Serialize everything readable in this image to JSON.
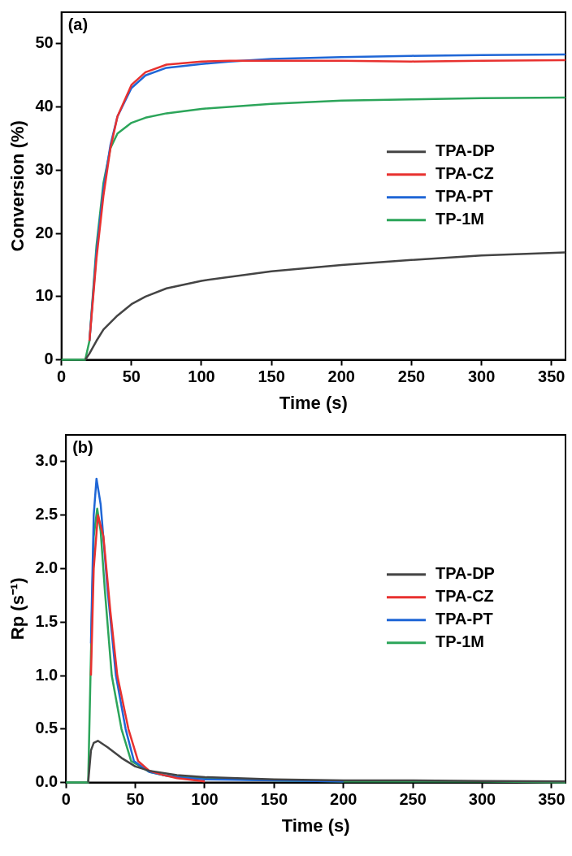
{
  "chart_data": [
    {
      "type": "line",
      "xlabel": "Time (s)",
      "ylabel": "Conversion (%)",
      "annotations": [
        "(a)"
      ],
      "xlim": [
        0,
        360
      ],
      "xticks": [
        0,
        50,
        100,
        150,
        200,
        250,
        300,
        350
      ],
      "ylim": [
        0,
        55
      ],
      "yticks": [
        0,
        10,
        20,
        30,
        40,
        50
      ],
      "grid": false,
      "legend": "right",
      "marker": "none",
      "line_style": "solid",
      "series": [
        {
          "name": "TPA-DP",
          "color": "#444444",
          "x": [
            17,
            20,
            25,
            30,
            40,
            50,
            60,
            75,
            100,
            150,
            200,
            250,
            300,
            360
          ],
          "values": [
            0,
            1,
            3,
            4.8,
            7,
            8.8,
            10,
            11.3,
            12.5,
            14,
            15,
            15.8,
            16.5,
            17
          ]
        },
        {
          "name": "TPA-CZ",
          "color": "#e8312f",
          "x": [
            20,
            25,
            30,
            35,
            40,
            50,
            60,
            75,
            100,
            120,
            150,
            200,
            250,
            300,
            360
          ],
          "values": [
            3,
            16,
            26,
            33.5,
            38.5,
            43.5,
            45.5,
            46.7,
            47.2,
            47.3,
            47.3,
            47.3,
            47.2,
            47.3,
            47.4
          ]
        },
        {
          "name": "TPA-PT",
          "color": "#1f66d6",
          "x": [
            20,
            25,
            30,
            35,
            40,
            50,
            60,
            75,
            100,
            120,
            150,
            200,
            250,
            300,
            360
          ],
          "values": [
            3,
            17,
            27,
            34,
            38.5,
            43,
            45,
            46.2,
            46.8,
            47.2,
            47.6,
            47.9,
            48.1,
            48.2,
            48.3
          ]
        },
        {
          "name": "TP-1M",
          "color": "#2ca55a",
          "x": [
            0,
            17,
            20,
            25,
            30,
            35,
            40,
            50,
            60,
            75,
            100,
            150,
            200,
            250,
            300,
            360
          ],
          "values": [
            0,
            0,
            3,
            18,
            28,
            33.5,
            35.8,
            37.5,
            38.3,
            39,
            39.7,
            40.5,
            41,
            41.2,
            41.4,
            41.5
          ]
        }
      ]
    },
    {
      "type": "line",
      "xlabel": "Time (s)",
      "ylabel": "Rp (s⁻¹)",
      "annotations": [
        "(b)"
      ],
      "xlim": [
        0,
        360
      ],
      "xticks": [
        0,
        50,
        100,
        150,
        200,
        250,
        300,
        350
      ],
      "ylim": [
        0,
        3.25
      ],
      "yticks": [
        {
          "value": 0,
          "label": "0.0"
        },
        {
          "value": 0.5,
          "label": "0.5"
        },
        {
          "value": 1,
          "label": "1.0"
        },
        {
          "value": 1.5,
          "label": "1.5"
        },
        {
          "value": 2,
          "label": "2.0"
        },
        {
          "value": 2.5,
          "label": "2.5"
        },
        {
          "value": 3,
          "label": "3.0"
        }
      ],
      "grid": false,
      "legend": "right",
      "marker": "none",
      "line_style": "solid",
      "series": [
        {
          "name": "TPA-DP",
          "color": "#444444",
          "x": [
            16,
            18,
            20,
            23,
            30,
            40,
            50,
            60,
            80,
            100,
            150,
            200,
            250,
            300,
            360
          ],
          "values": [
            0,
            0.3,
            0.37,
            0.39,
            0.33,
            0.23,
            0.15,
            0.11,
            0.07,
            0.05,
            0.03,
            0.02,
            0.02,
            0.015,
            0.01
          ]
        },
        {
          "name": "TPA-CZ",
          "color": "#e8312f",
          "x": [
            18,
            20,
            23,
            27,
            32,
            37,
            45,
            52,
            60,
            70,
            80,
            100
          ],
          "values": [
            1,
            2,
            2.5,
            2.3,
            1.6,
            1.0,
            0.5,
            0.2,
            0.11,
            0.07,
            0.04,
            0.01
          ]
        },
        {
          "name": "TPA-PT",
          "color": "#1f66d6",
          "x": [
            18,
            20,
            22,
            25,
            30,
            36,
            43,
            49,
            60,
            70,
            80,
            100,
            150,
            200
          ],
          "values": [
            1.3,
            2.5,
            2.84,
            2.6,
            1.8,
            1.0,
            0.5,
            0.2,
            0.1,
            0.07,
            0.05,
            0.03,
            0.02,
            0.01
          ]
        },
        {
          "name": "TP-1M",
          "color": "#2ca55a",
          "x": [
            0,
            16,
            18,
            20,
            22.5,
            25,
            28,
            33,
            40,
            47,
            60,
            70,
            80,
            100,
            150,
            200,
            300,
            360
          ],
          "values": [
            0,
            0,
            1.2,
            2.3,
            2.56,
            2.35,
            1.8,
            1.0,
            0.5,
            0.2,
            0.1,
            0.07,
            0.05,
            0.04,
            0.02,
            0.01,
            0.01,
            0
          ]
        }
      ]
    }
  ]
}
